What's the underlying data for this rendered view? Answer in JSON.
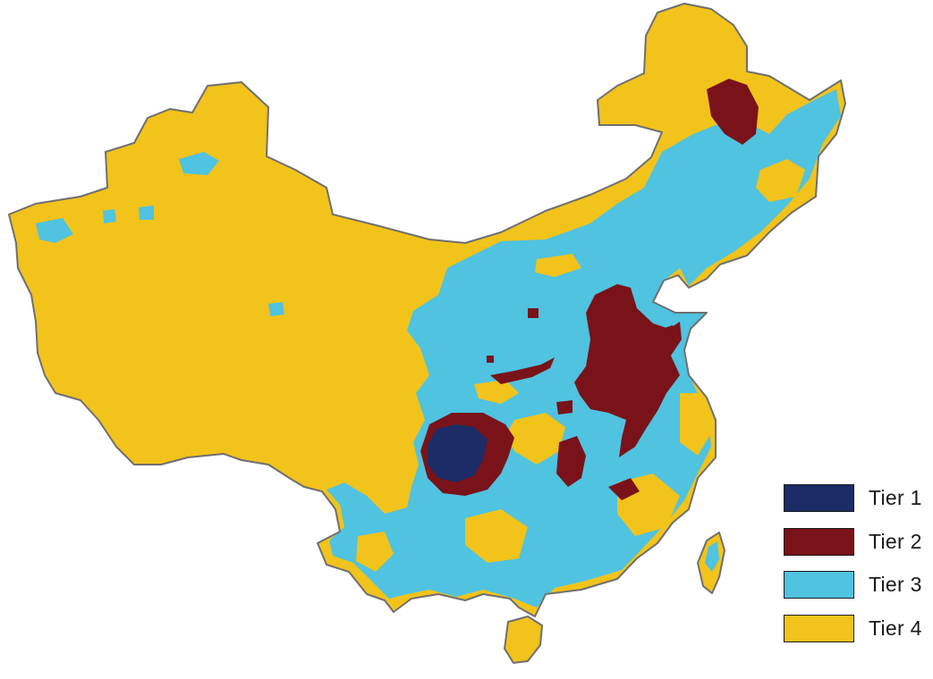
{
  "map": {
    "region": "China",
    "palette": {
      "tier_1": "#1b2c66",
      "tier_2": "#7a1319",
      "tier_3": "#4fc3e0",
      "tier_4": "#f2c31b",
      "border": "#6f6f6f"
    }
  },
  "legend": {
    "items": [
      {
        "label": "Tier 1",
        "color": "#1b2c66"
      },
      {
        "label": "Tier 2",
        "color": "#7a1319"
      },
      {
        "label": "Tier 3",
        "color": "#4fc3e0"
      },
      {
        "label": "Tier 4",
        "color": "#f2c31b"
      }
    ]
  }
}
